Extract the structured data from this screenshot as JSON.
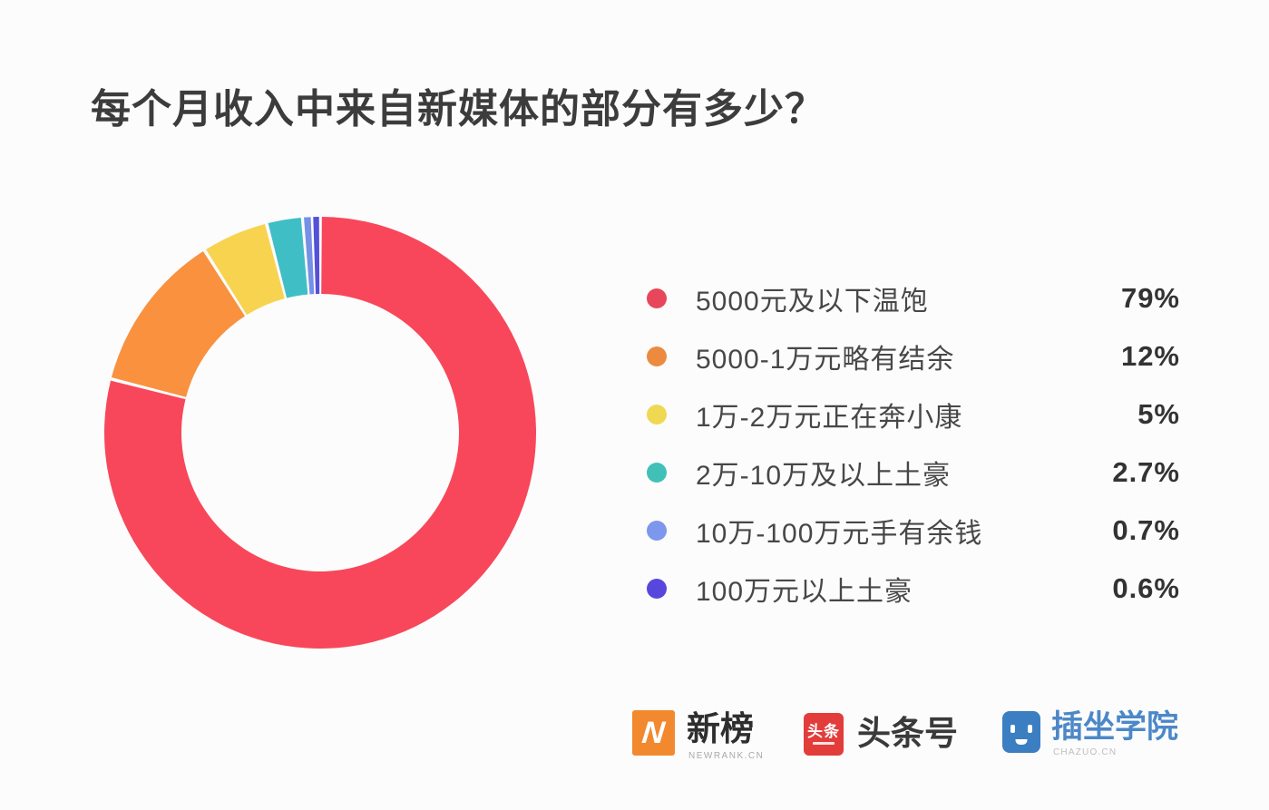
{
  "title": "每个月收入中来自新媒体的部分有多少？",
  "chart_data": {
    "type": "pie",
    "subtype": "donut",
    "title": "每个月收入中来自新媒体的部分有多少？",
    "start_angle_deg_from_top": 0,
    "direction": "clockwise",
    "inner_radius_ratio": 0.64,
    "legend_position": "right",
    "categories": [
      "5000元及以下温饱",
      "5000-1万元略有结余",
      "1万-2万元正在奔小康",
      "2万-10万及以上土豪",
      "10万-100万元手有余钱",
      "100万元以上土豪"
    ],
    "values": [
      79,
      12,
      5,
      2.7,
      0.7,
      0.6
    ],
    "percent_labels": [
      "79%",
      "12%",
      "5%",
      "2.7%",
      "0.7%",
      "0.6%"
    ],
    "colors": [
      "#F8475A",
      "#F9913E",
      "#F8D34F",
      "#3FBFC5",
      "#7690E6",
      "#5450D9"
    ]
  },
  "legend": {
    "items": [
      {
        "label": "5000元及以下温饱",
        "value": "79%",
        "color": "#E8465A"
      },
      {
        "label": "5000-1万元略有结余",
        "value": "12%",
        "color": "#EC8B3F"
      },
      {
        "label": "1万-2万元正在奔小康",
        "value": "5%",
        "color": "#EFD952"
      },
      {
        "label": "2万-10万及以上土豪",
        "value": "2.7%",
        "color": "#41C0B8"
      },
      {
        "label": "10万-100万元手有余钱",
        "value": "0.7%",
        "color": "#7C97EC"
      },
      {
        "label": "100万元以上土豪",
        "value": "0.6%",
        "color": "#5847DC"
      }
    ]
  },
  "footer": {
    "newrank": {
      "icon_letter": "N",
      "name": "新榜",
      "sub": "NEWRANK.CN",
      "icon_color": "#F2892F"
    },
    "toutiao": {
      "icon_text": "头条",
      "name": "头条号",
      "icon_color": "#E23C3B"
    },
    "chazuo": {
      "name": "插坐学院",
      "sub": "CHAZUO.CN",
      "icon_color": "#3B7EC2"
    }
  }
}
